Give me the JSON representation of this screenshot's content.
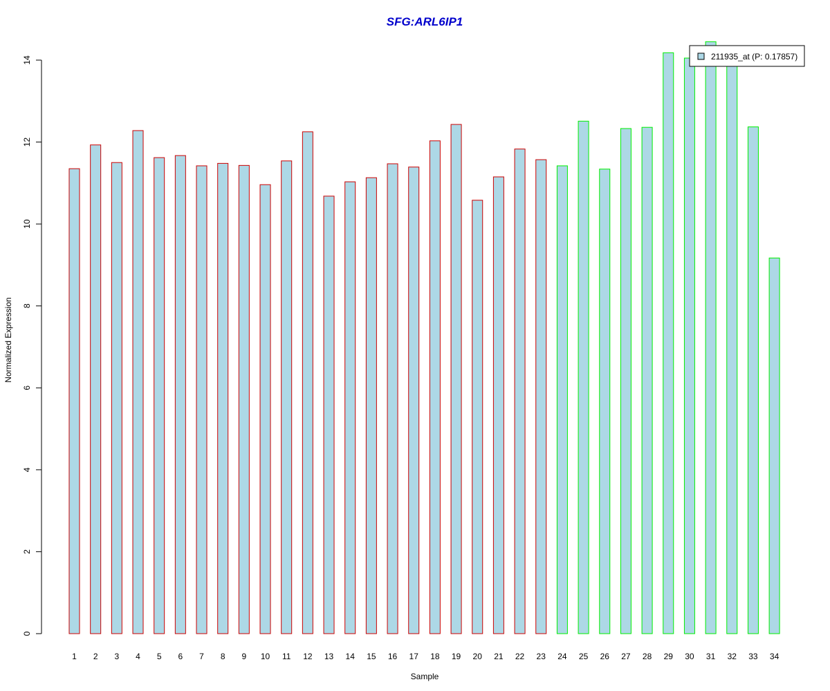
{
  "chart_data": {
    "type": "bar",
    "title": "SFG:ARL6IP1",
    "xlabel": "Sample",
    "ylabel": "Normalized Expression",
    "ylim": [
      0,
      14
    ],
    "yticks": [
      0,
      2,
      4,
      6,
      8,
      10,
      12,
      14
    ],
    "categories": [
      "1",
      "2",
      "3",
      "4",
      "5",
      "6",
      "7",
      "8",
      "9",
      "10",
      "11",
      "12",
      "13",
      "14",
      "15",
      "16",
      "17",
      "18",
      "19",
      "20",
      "21",
      "22",
      "23",
      "24",
      "25",
      "26",
      "27",
      "28",
      "29",
      "30",
      "31",
      "32",
      "33",
      "34"
    ],
    "series": [
      {
        "name": "211935_at (P: 0.17857)",
        "values": [
          11.35,
          11.93,
          11.5,
          12.28,
          11.62,
          11.67,
          11.42,
          11.48,
          11.43,
          10.96,
          11.54,
          12.25,
          10.68,
          11.03,
          11.13,
          11.47,
          11.39,
          12.03,
          12.43,
          10.58,
          11.15,
          11.83,
          11.57,
          11.42,
          12.51,
          11.34,
          12.33,
          12.36,
          14.18,
          14.05,
          14.45,
          14.05,
          12.37,
          9.17
        ],
        "group_colors": [
          "#cc0000",
          "#cc0000",
          "#cc0000",
          "#cc0000",
          "#cc0000",
          "#cc0000",
          "#cc0000",
          "#cc0000",
          "#cc0000",
          "#cc0000",
          "#cc0000",
          "#cc0000",
          "#cc0000",
          "#cc0000",
          "#cc0000",
          "#cc0000",
          "#cc0000",
          "#cc0000",
          "#cc0000",
          "#cc0000",
          "#cc0000",
          "#cc0000",
          "#cc0000",
          "#00ee00",
          "#00ee00",
          "#00ee00",
          "#00ee00",
          "#00ee00",
          "#00ee00",
          "#00ee00",
          "#00ee00",
          "#00ee00",
          "#00ee00",
          "#00ee00"
        ]
      }
    ],
    "fill_color": "#add8e6",
    "title_color": "#0000cc",
    "legend_position": "top-right",
    "grid": false
  }
}
